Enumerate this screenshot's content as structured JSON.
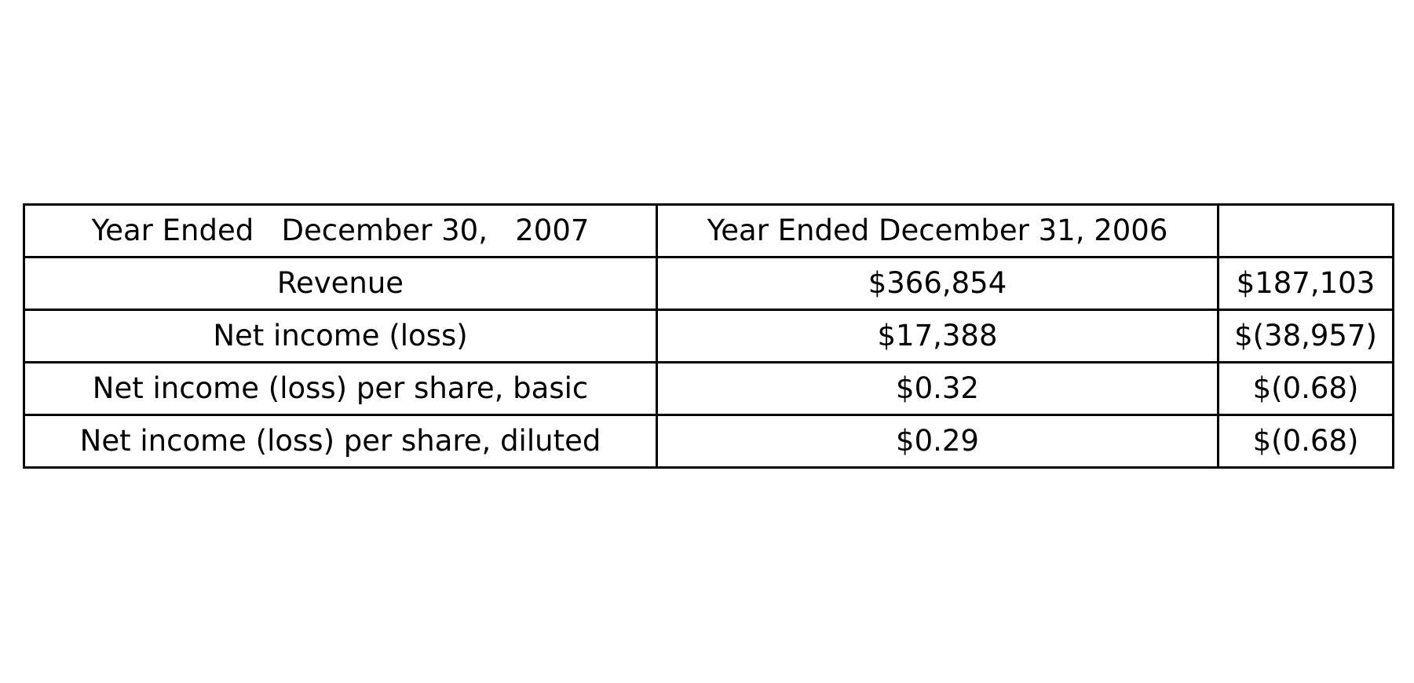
{
  "table": {
    "header": {
      "label": "Year Ended   December 30,   2007",
      "col_2007": "Year Ended December 31, 2006",
      "col_2006": ""
    },
    "rows": [
      {
        "label": "Revenue",
        "col_2007": "$366,854",
        "col_2006": "$187,103"
      },
      {
        "label": "Net income (loss)",
        "col_2007": "$17,388",
        "col_2006": "$(38,957)"
      },
      {
        "label": "Net income (loss) per share, basic",
        "col_2007": "$0.32",
        "col_2006": "$(0.68)"
      },
      {
        "label": "Net income (loss) per share, diluted",
        "col_2007": "$0.29",
        "col_2006": "$(0.68)"
      }
    ]
  }
}
